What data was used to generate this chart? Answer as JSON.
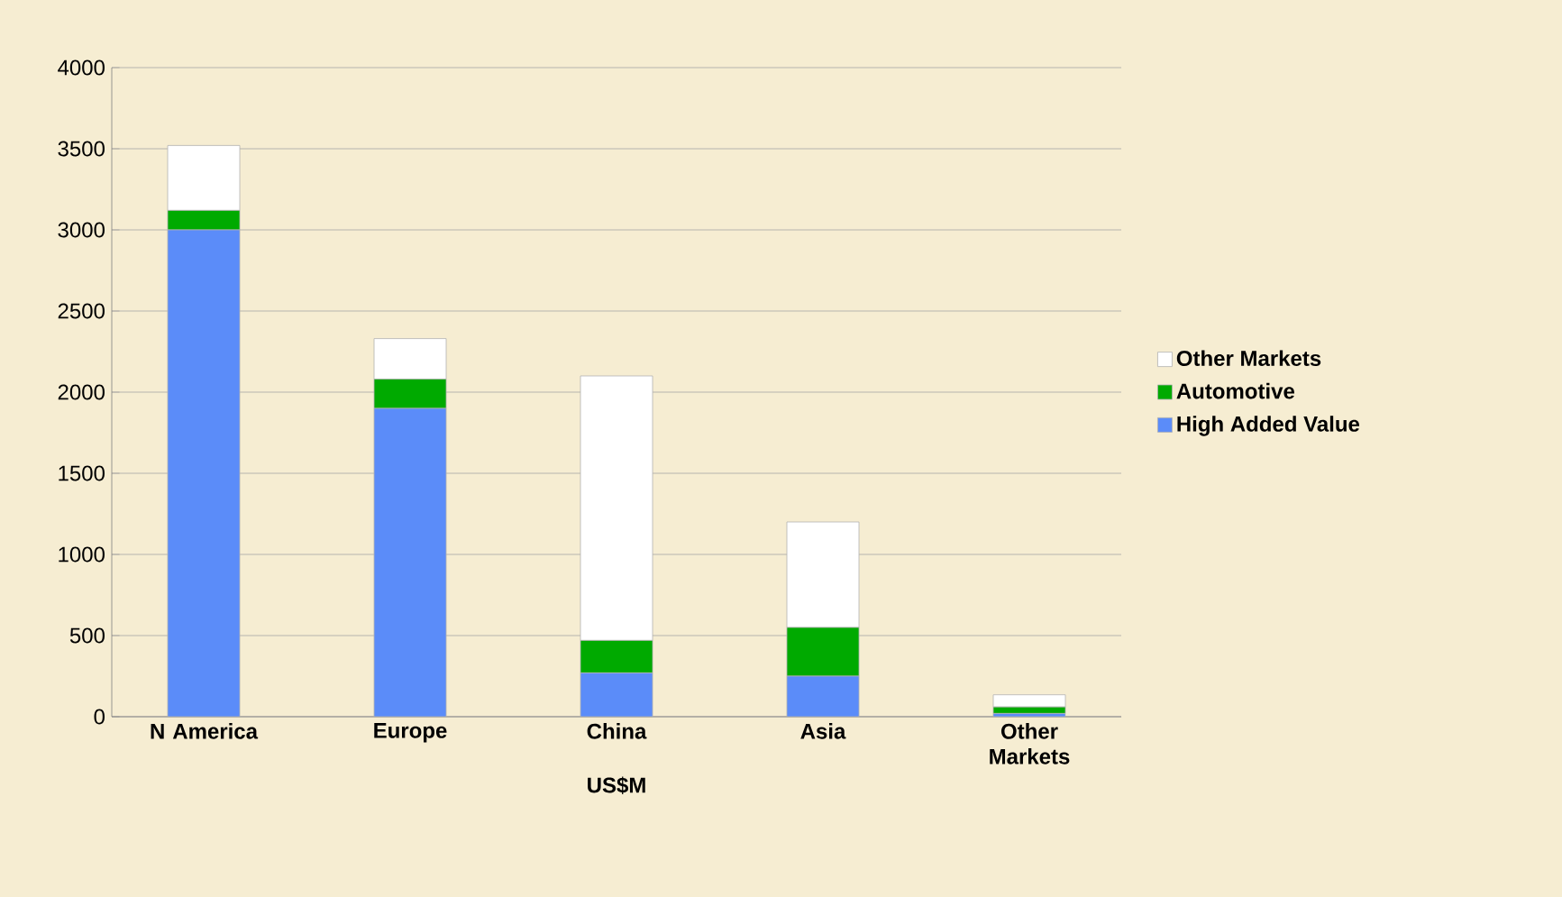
{
  "chart_data": {
    "type": "bar",
    "stacked": true,
    "xlabel": "US$M",
    "categories": [
      "N America",
      "Europe",
      "China",
      "Asia",
      "Other Markets"
    ],
    "series": [
      {
        "name": "High Added Value",
        "color": "#5b8cf9",
        "values": [
          3000,
          1900,
          270,
          250,
          20
        ]
      },
      {
        "name": "Automotive",
        "color": "#00aa00",
        "values": [
          120,
          180,
          200,
          300,
          40
        ]
      },
      {
        "name": "Other Markets",
        "color": "#ffffff",
        "values": [
          400,
          250,
          1630,
          650,
          75
        ]
      }
    ],
    "ylim": [
      0,
      4000
    ],
    "yticks": [
      0,
      500,
      1000,
      1500,
      2000,
      2500,
      3000,
      3500,
      4000
    ],
    "grid": "y",
    "legend": "right"
  }
}
